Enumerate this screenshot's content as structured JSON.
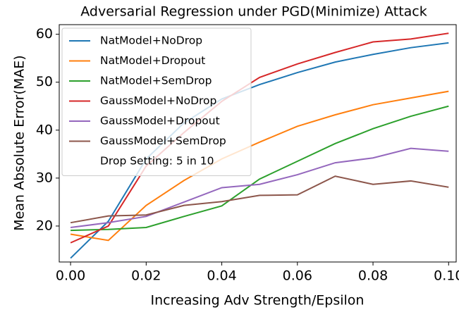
{
  "chart_data": {
    "type": "line",
    "title": "Adversarial Regression under PGD(Minimize) Attack",
    "x_label": "Increasing Adv Strength/Epsilon",
    "y_label": "Mean Absolute Error(MAE)",
    "x": [
      0,
      0.01,
      0.02,
      0.03,
      0.04,
      0.05,
      0.06,
      0.07,
      0.08,
      0.09,
      0.1
    ],
    "series": [
      {
        "name": "NatModel+NoDrop",
        "color": "#1f77b4",
        "values": [
          13.3,
          21,
          34,
          41.5,
          46.5,
          49.5,
          52,
          54.2,
          55.8,
          57.2,
          58.2
        ]
      },
      {
        "name": "NatModel+Dropout",
        "color": "#ff7f0e",
        "values": [
          18.3,
          17,
          24.3,
          29.5,
          34,
          37.5,
          40.8,
          43.2,
          45.3,
          46.7,
          48.1
        ]
      },
      {
        "name": "NatModel+SemDrop",
        "color": "#2ca02c",
        "values": [
          19.1,
          19.3,
          19.7,
          22,
          24.2,
          29.8,
          33.5,
          37.2,
          40.3,
          42.9,
          45
        ]
      },
      {
        "name": "GaussModel+NoDrop",
        "color": "#d62728",
        "values": [
          16.5,
          20,
          32.5,
          39.5,
          46,
          51,
          53.8,
          56.2,
          58.4,
          59,
          60.2
        ]
      },
      {
        "name": "GaussModel+Dropout",
        "color": "#9467bd",
        "values": [
          19.7,
          20.7,
          22,
          25,
          28,
          28.7,
          30.7,
          33.2,
          34.2,
          36.2,
          35.6
        ]
      },
      {
        "name": "GaussModel+SemDrop",
        "color": "#8c564b",
        "values": [
          20.7,
          22.1,
          22.3,
          24.3,
          25.1,
          26.4,
          26.5,
          30.4,
          28.7,
          29.4,
          28.1
        ]
      }
    ],
    "legend_note": "Drop Setting: 5 in 10",
    "legend": "upper left",
    "xlim": [
      -0.003,
      0.102
    ],
    "ylim": [
      12.5,
      62
    ],
    "xticks": [
      {
        "value": 0,
        "label": "0.00"
      },
      {
        "value": 0.02,
        "label": "0.02"
      },
      {
        "value": 0.04,
        "label": "0.04"
      },
      {
        "value": 0.06,
        "label": "0.06"
      },
      {
        "value": 0.08,
        "label": "0.08"
      },
      {
        "value": 0.1,
        "label": "0.10"
      }
    ],
    "yticks": [
      20,
      30,
      40,
      50,
      60
    ]
  }
}
